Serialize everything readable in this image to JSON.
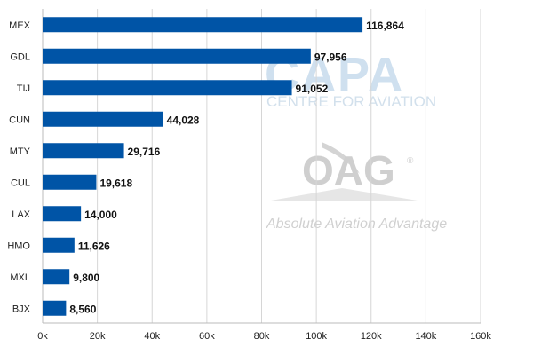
{
  "chart_data": {
    "type": "bar",
    "orientation": "horizontal",
    "categories": [
      "MEX",
      "GDL",
      "TIJ",
      "CUN",
      "MTY",
      "CUL",
      "LAX",
      "HMO",
      "MXL",
      "BJX"
    ],
    "values": [
      116864,
      97956,
      91052,
      44028,
      29716,
      19618,
      14000,
      11626,
      9800,
      8560
    ],
    "value_labels": [
      "116,864",
      "97,956",
      "91,052",
      "44,028",
      "29,716",
      "19,618",
      "14,000",
      "11,626",
      "9,800",
      "8,560"
    ],
    "xlim": [
      0,
      160000
    ],
    "x_ticks": [
      0,
      20000,
      40000,
      60000,
      80000,
      100000,
      120000,
      140000,
      160000
    ],
    "x_tick_labels": [
      "0k",
      "20k",
      "40k",
      "60k",
      "80k",
      "100k",
      "120k",
      "140k",
      "160k"
    ],
    "title": "",
    "xlabel": "",
    "ylabel": "",
    "grid": "vertical",
    "legend": "none",
    "bar_color": "#0054a6"
  },
  "watermarks": {
    "capa_logo": "CAPA",
    "capa_tagline": "CENTRE FOR AVIATION",
    "oag_logo": "OAG",
    "oag_tagline": "Absolute Aviation Advantage",
    "registered_mark": "®"
  }
}
